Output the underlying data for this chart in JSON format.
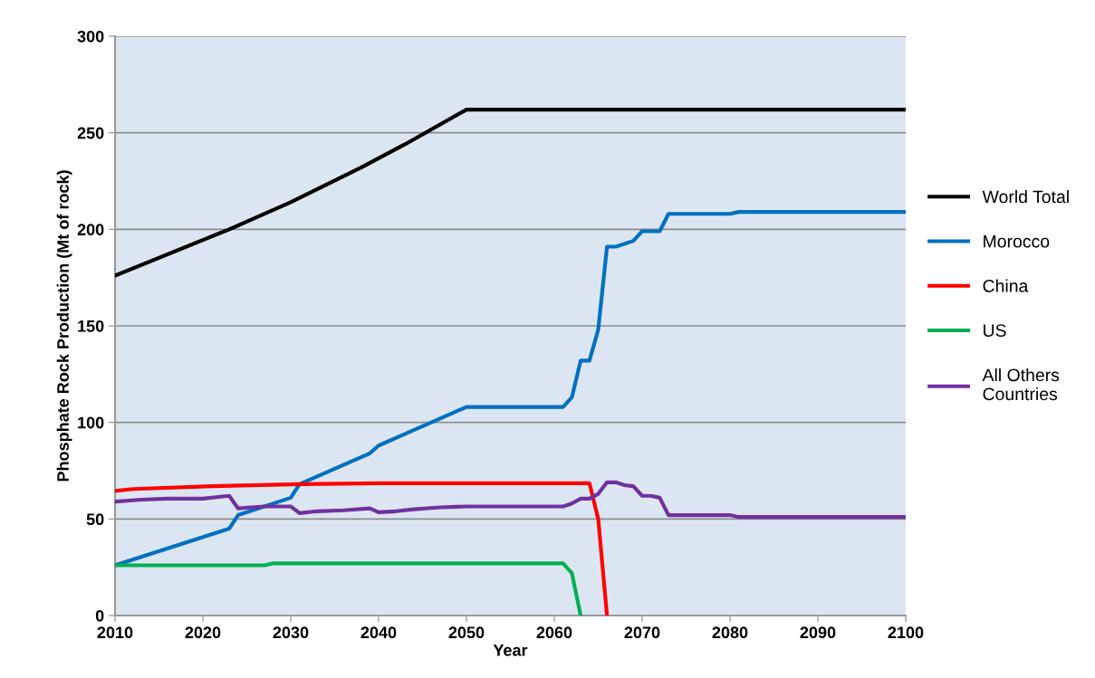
{
  "chart_data": {
    "type": "line",
    "xlabel": "Year",
    "ylabel": "Phosphate Rock Production (Mt of rock)",
    "xlim": [
      2010,
      2100
    ],
    "xticks": [
      2010,
      2020,
      2030,
      2040,
      2050,
      2060,
      2070,
      2080,
      2090,
      2100
    ],
    "ylim": [
      0,
      300
    ],
    "yticks": [
      0,
      50,
      100,
      150,
      200,
      250,
      300
    ],
    "grid": "y",
    "legend": "right",
    "marker": "none",
    "line_style": "solid",
    "series": [
      {
        "name": "World Total",
        "color": "#000000",
        "x": [
          2010,
          2023,
          2030,
          2038,
          2043,
          2050,
          2100
        ],
        "values": [
          176,
          200,
          214,
          232,
          244,
          262,
          262
        ]
      },
      {
        "name": "Morocco",
        "color": "#0070c0",
        "x": [
          2010,
          2023,
          2024,
          2030,
          2031,
          2034,
          2039,
          2040,
          2044,
          2047,
          2050,
          2061,
          2062,
          2063,
          2064,
          2065,
          2066,
          2067,
          2069,
          2070,
          2072,
          2073,
          2080,
          2081,
          2100
        ],
        "values": [
          26,
          45,
          52,
          61,
          68,
          74,
          84,
          88,
          96,
          102,
          108,
          108,
          113,
          132,
          132,
          148,
          191,
          191,
          194,
          199,
          199,
          208,
          208,
          209,
          209
        ]
      },
      {
        "name": "China",
        "color": "#ff0000",
        "x": [
          2010,
          2012,
          2021,
          2031,
          2040,
          2064,
          2065,
          2066
        ],
        "values": [
          64.5,
          65.5,
          67,
          68,
          68.5,
          68.5,
          50,
          0
        ]
      },
      {
        "name": "US",
        "color": "#00b050",
        "x": [
          2010,
          2027,
          2028,
          2061,
          2062,
          2063
        ],
        "values": [
          26,
          26,
          27,
          27,
          22,
          0
        ]
      },
      {
        "name": "All Others\nCountries",
        "color": "#7030a0",
        "x": [
          2010,
          2013,
          2016,
          2020,
          2022,
          2023,
          2024,
          2027,
          2030,
          2031,
          2033,
          2036,
          2039,
          2040,
          2042,
          2044,
          2047,
          2050,
          2061,
          2062,
          2063,
          2064,
          2065,
          2066,
          2067,
          2068,
          2069,
          2070,
          2071,
          2072,
          2073,
          2080,
          2081,
          2100
        ],
        "values": [
          59,
          60,
          60.5,
          60.5,
          61.5,
          62,
          55.5,
          56.5,
          56.5,
          53,
          54,
          54.5,
          55.5,
          53.5,
          54,
          55,
          56,
          56.5,
          56.5,
          58,
          60.5,
          60.5,
          63,
          69,
          69,
          67.5,
          67,
          62,
          62,
          61,
          52,
          52,
          51,
          51
        ]
      }
    ]
  }
}
